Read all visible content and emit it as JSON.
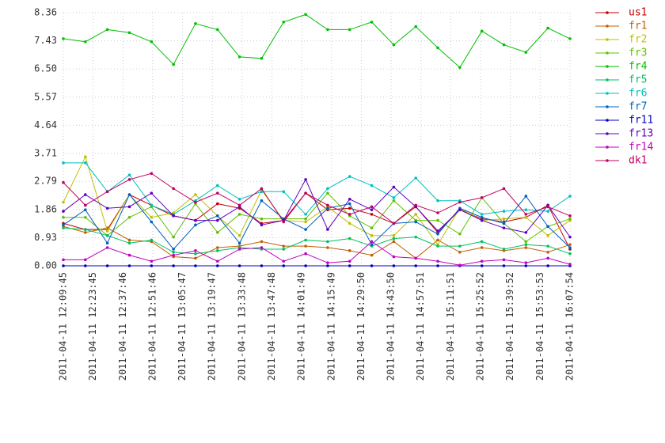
{
  "chart_data": {
    "type": "line",
    "x": [
      43785,
      44406,
      45027,
      45649,
      46270,
      46891,
      47512,
      48134,
      48755,
      49376,
      49997,
      50619,
      51240,
      51861,
      52482,
      53104,
      53725,
      54346,
      54967,
      55589,
      56210,
      56831,
      57452,
      58074
    ],
    "xlim": [
      43785,
      58074
    ],
    "xticks": [
      {
        "value": 43785,
        "label": "2011-04-11 12:09:45"
      },
      {
        "value": 44625,
        "label": "2011-04-11 12:23:45"
      },
      {
        "value": 45466,
        "label": "2011-04-11 12:37:46"
      },
      {
        "value": 46306,
        "label": "2011-04-11 12:51:46"
      },
      {
        "value": 47147,
        "label": "2011-04-11 13:05:47"
      },
      {
        "value": 47987,
        "label": "2011-04-11 13:19:47"
      },
      {
        "value": 48828,
        "label": "2011-04-11 13:33:48"
      },
      {
        "value": 49668,
        "label": "2011-04-11 13:47:48"
      },
      {
        "value": 50509,
        "label": "2011-04-11 14:01:49"
      },
      {
        "value": 51349,
        "label": "2011-04-11 14:15:49"
      },
      {
        "value": 52190,
        "label": "2011-04-11 14:29:50"
      },
      {
        "value": 53030,
        "label": "2011-04-11 14:43:50"
      },
      {
        "value": 53871,
        "label": "2011-04-11 14:57:51"
      },
      {
        "value": 54711,
        "label": "2011-04-11 15:11:51"
      },
      {
        "value": 55552,
        "label": "2011-04-11 15:25:52"
      },
      {
        "value": 56392,
        "label": "2011-04-11 15:39:52"
      },
      {
        "value": 57233,
        "label": "2011-04-11 15:53:53"
      },
      {
        "value": 58074,
        "label": "2011-04-11 16:07:54"
      }
    ],
    "ylim": [
      0,
      8.36
    ],
    "yticks": [
      {
        "value": 0,
        "label": "0.00"
      },
      0.93,
      1.86,
      2.79,
      3.71,
      4.64,
      5.57,
      {
        "value": 6.5,
        "label": "6.50"
      },
      7.43,
      8.36
    ],
    "grid": true,
    "legend": "right",
    "series": [
      {
        "name": "us1",
        "color": "#c00000",
        "values": [
          1.4,
          1.2,
          1.2,
          2.35,
          2.0,
          1.65,
          1.5,
          2.05,
          1.9,
          1.4,
          1.5,
          2.4,
          1.85,
          1.9,
          1.7,
          1.4,
          1.95,
          1.1,
          1.85,
          1.55,
          1.45,
          1.6,
          2.0,
          0.55
        ]
      },
      {
        "name": "fr1",
        "color": "#c06000",
        "values": [
          1.3,
          1.1,
          1.25,
          0.85,
          0.8,
          0.3,
          0.25,
          0.6,
          0.65,
          0.8,
          0.65,
          0.65,
          0.6,
          0.5,
          0.35,
          0.8,
          0.25,
          0.85,
          0.45,
          0.6,
          0.5,
          0.6,
          0.45,
          0.7
        ]
      },
      {
        "name": "fr2",
        "color": "#c0c000",
        "values": [
          2.1,
          3.6,
          1.15,
          2.35,
          1.6,
          1.75,
          2.35,
          1.65,
          1.0,
          2.5,
          1.5,
          1.45,
          1.95,
          1.4,
          1.0,
          1.0,
          1.7,
          0.7,
          1.9,
          1.5,
          1.55,
          1.6,
          1.0,
          1.5
        ]
      },
      {
        "name": "fr3",
        "color": "#60c000",
        "values": [
          1.6,
          1.6,
          1.0,
          1.6,
          1.95,
          0.95,
          2.05,
          1.1,
          1.7,
          1.55,
          1.55,
          1.55,
          2.4,
          1.65,
          1.25,
          2.15,
          1.5,
          1.5,
          1.05,
          2.25,
          1.4,
          0.8,
          1.3,
          1.55
        ]
      },
      {
        "name": "fr4",
        "color": "#00c000",
        "values": [
          7.5,
          7.4,
          7.8,
          7.7,
          7.4,
          6.65,
          8.0,
          7.8,
          6.9,
          6.85,
          8.05,
          8.3,
          7.8,
          7.8,
          8.05,
          7.3,
          7.9,
          7.2,
          6.55,
          7.75,
          7.3,
          7.05,
          7.85,
          7.5
        ]
      },
      {
        "name": "fr5",
        "color": "#00c060",
        "values": [
          1.25,
          1.2,
          1.0,
          0.75,
          0.85,
          0.45,
          0.4,
          0.5,
          0.6,
          0.55,
          0.55,
          0.85,
          0.8,
          0.9,
          0.65,
          0.9,
          0.95,
          0.65,
          0.65,
          0.8,
          0.55,
          0.7,
          0.65,
          0.4
        ]
      },
      {
        "name": "fr6",
        "color": "#00c0c0",
        "values": [
          3.4,
          3.4,
          2.45,
          3.0,
          2.0,
          1.7,
          2.15,
          2.65,
          2.2,
          2.45,
          2.45,
          1.7,
          2.55,
          2.95,
          2.65,
          2.25,
          2.9,
          2.15,
          2.15,
          1.7,
          1.8,
          1.85,
          1.8,
          2.3
        ]
      },
      {
        "name": "fr7",
        "color": "#0060c0",
        "values": [
          1.35,
          1.85,
          0.75,
          2.35,
          1.45,
          0.55,
          1.35,
          1.65,
          0.75,
          2.15,
          1.55,
          1.2,
          1.9,
          2.05,
          0.7,
          1.4,
          1.45,
          1.05,
          1.9,
          1.6,
          1.4,
          2.3,
          1.3,
          0.6
        ]
      },
      {
        "name": "fr11",
        "color": "#0000c0",
        "values": [
          0,
          0,
          0,
          0,
          0,
          0,
          0,
          0,
          0,
          0,
          0,
          0,
          0,
          0,
          0,
          0,
          0,
          0,
          0,
          0,
          0,
          0,
          0,
          0
        ]
      },
      {
        "name": "fr13",
        "color": "#6000c0",
        "values": [
          1.8,
          2.35,
          1.9,
          1.95,
          2.4,
          1.65,
          1.5,
          1.5,
          1.95,
          1.35,
          1.5,
          2.85,
          1.2,
          2.2,
          1.85,
          2.6,
          1.95,
          1.15,
          1.85,
          1.5,
          1.25,
          1.1,
          2.0,
          0.95
        ]
      },
      {
        "name": "fr14",
        "color": "#c000c0",
        "values": [
          0.2,
          0.2,
          0.6,
          0.35,
          0.15,
          0.35,
          0.5,
          0.15,
          0.55,
          0.6,
          0.15,
          0.4,
          0.1,
          0.15,
          0.8,
          0.3,
          0.25,
          0.15,
          0.02,
          0.15,
          0.2,
          0.1,
          0.25,
          0.05
        ]
      },
      {
        "name": "dk1",
        "color": "#c00060",
        "values": [
          2.75,
          2.0,
          2.45,
          2.85,
          3.05,
          2.55,
          2.1,
          2.4,
          2.0,
          2.55,
          1.45,
          2.4,
          2.0,
          1.7,
          1.95,
          1.4,
          2.0,
          1.75,
          2.1,
          2.25,
          2.55,
          1.7,
          1.95,
          1.65
        ]
      }
    ]
  }
}
